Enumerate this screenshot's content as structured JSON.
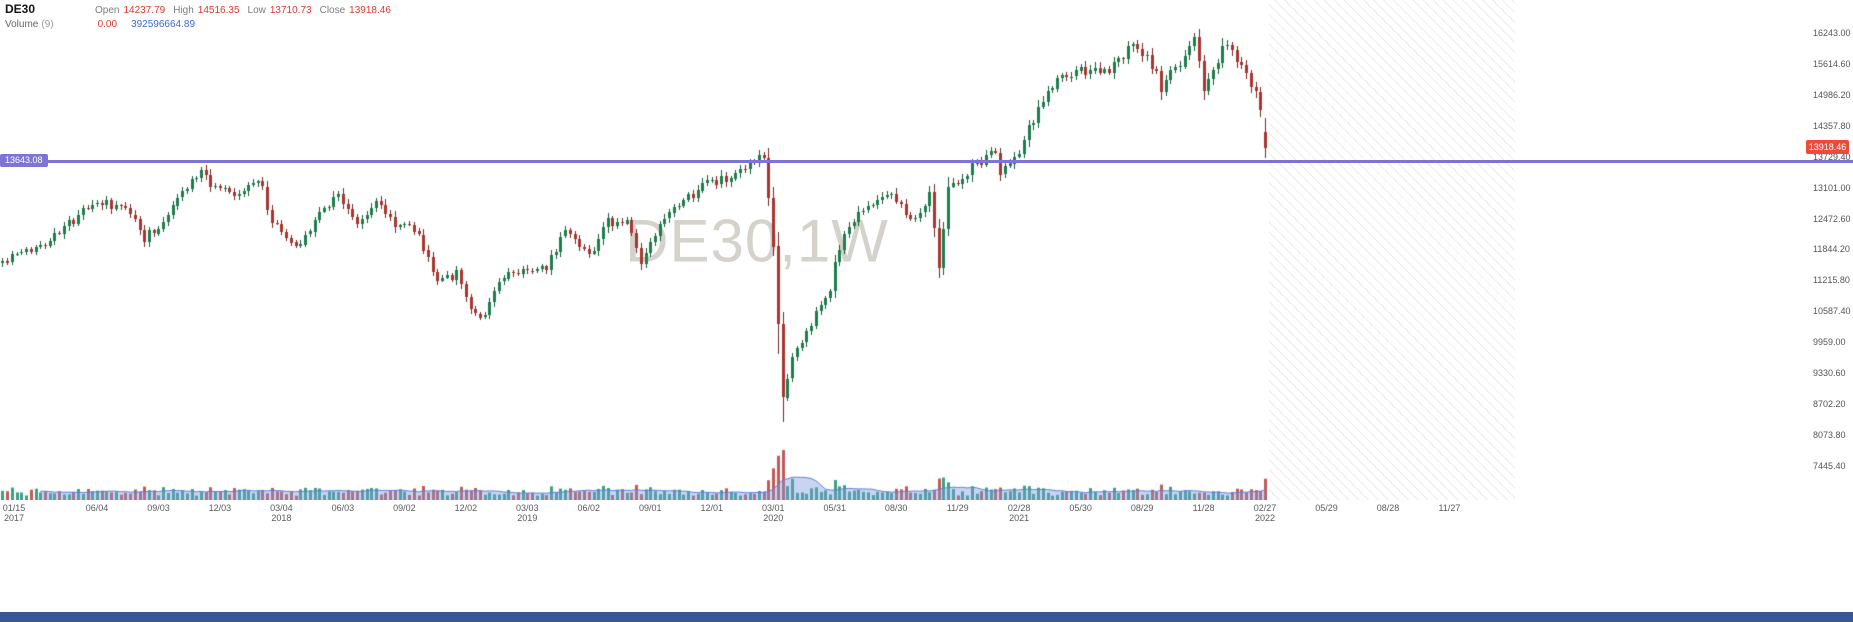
{
  "header": {
    "symbol": "DE30",
    "open_label": "Open",
    "open_value": "14237.79",
    "high_label": "High",
    "high_value": "14516.35",
    "low_label": "Low",
    "low_value": "13710.73",
    "close_label": "Close",
    "close_value": "13918.46",
    "indicator_name": "Volume",
    "indicator_period": "(9)",
    "indicator_value_1": "0.00",
    "indicator_value_2": "392596664.89"
  },
  "watermark": "DE30,1W",
  "hline_label": "13643.08",
  "current_price": "13918.46",
  "chart_data": {
    "type": "candlestick",
    "symbol": "DE30",
    "timeframe": "1W",
    "title_watermark": "DE30,1W",
    "last_candle": {
      "open": 14237.79,
      "high": 14516.35,
      "low": 13710.73,
      "close": 13918.46
    },
    "hline_price": 13643.08,
    "price_ticks": [
      "16243.00",
      "15614.60",
      "14986.20",
      "14357.80",
      "13729.40",
      "13101.00",
      "12472.60",
      "11844.20",
      "11215.80",
      "10587.40",
      "9959.00",
      "9330.60",
      "8702.20",
      "8073.80",
      "7445.40"
    ],
    "x_axis_labels": [
      {
        "text": "01/15",
        "week": 0,
        "year": "2017"
      },
      {
        "text": "06/04",
        "week": 20
      },
      {
        "text": "09/03",
        "week": 33
      },
      {
        "text": "12/03",
        "week": 46
      },
      {
        "text": "03/04",
        "week": 59,
        "year": "2018"
      },
      {
        "text": "06/03",
        "week": 72
      },
      {
        "text": "09/02",
        "week": 85
      },
      {
        "text": "12/02",
        "week": 98
      },
      {
        "text": "03/03",
        "week": 111,
        "year": "2019"
      },
      {
        "text": "06/02",
        "week": 124
      },
      {
        "text": "09/01",
        "week": 137
      },
      {
        "text": "12/01",
        "week": 150
      },
      {
        "text": "03/01",
        "week": 163,
        "year": "2020"
      },
      {
        "text": "05/31",
        "week": 176
      },
      {
        "text": "08/30",
        "week": 189
      },
      {
        "text": "11/29",
        "week": 202
      },
      {
        "text": "02/28",
        "week": 215,
        "year": "2021"
      },
      {
        "text": "05/30",
        "week": 228
      },
      {
        "text": "08/29",
        "week": 241
      },
      {
        "text": "11/28",
        "week": 254
      },
      {
        "text": "02/27",
        "week": 267,
        "year": "2022"
      },
      {
        "text": "05/29",
        "week": 280
      },
      {
        "text": "08/28",
        "week": 293
      },
      {
        "text": "11/27",
        "week": 306
      }
    ],
    "weeks_total": 268,
    "close_anchors_weekly": [
      [
        0,
        11600
      ],
      [
        6,
        11830
      ],
      [
        10,
        12060
      ],
      [
        15,
        12440
      ],
      [
        20,
        12820
      ],
      [
        23,
        12700
      ],
      [
        27,
        12620
      ],
      [
        30,
        12080
      ],
      [
        33,
        12310
      ],
      [
        37,
        12920
      ],
      [
        42,
        13440
      ],
      [
        45,
        13050
      ],
      [
        50,
        12910
      ],
      [
        54,
        13330
      ],
      [
        57,
        12420
      ],
      [
        62,
        11880
      ],
      [
        67,
        12580
      ],
      [
        71,
        13010
      ],
      [
        75,
        12310
      ],
      [
        79,
        12850
      ],
      [
        83,
        12360
      ],
      [
        87,
        12290
      ],
      [
        92,
        11250
      ],
      [
        96,
        11330
      ],
      [
        100,
        10480
      ],
      [
        102,
        10560
      ],
      [
        106,
        11290
      ],
      [
        111,
        11480
      ],
      [
        115,
        11420
      ],
      [
        119,
        12330
      ],
      [
        124,
        11740
      ],
      [
        128,
        12390
      ],
      [
        132,
        12420
      ],
      [
        135,
        11560
      ],
      [
        140,
        12440
      ],
      [
        145,
        12890
      ],
      [
        149,
        13240
      ],
      [
        154,
        13250
      ],
      [
        158,
        13520
      ],
      [
        161,
        13740
      ],
      [
        163,
        11890
      ],
      [
        164,
        10330
      ],
      [
        165,
        8850
      ],
      [
        167,
        9630
      ],
      [
        171,
        10340
      ],
      [
        175,
        11060
      ],
      [
        176,
        11590
      ],
      [
        179,
        12330
      ],
      [
        184,
        12840
      ],
      [
        188,
        13030
      ],
      [
        192,
        12470
      ],
      [
        196,
        12910
      ],
      [
        198,
        11560
      ],
      [
        200,
        13080
      ],
      [
        204,
        13410
      ],
      [
        206,
        13590
      ],
      [
        210,
        13870
      ],
      [
        211,
        13430
      ],
      [
        215,
        13790
      ],
      [
        219,
        14750
      ],
      [
        223,
        15280
      ],
      [
        227,
        15440
      ],
      [
        231,
        15450
      ],
      [
        235,
        15540
      ],
      [
        239,
        15980
      ],
      [
        243,
        15610
      ],
      [
        245,
        15150
      ],
      [
        249,
        15640
      ],
      [
        252,
        16160
      ],
      [
        254,
        15100
      ],
      [
        258,
        15890
      ],
      [
        260,
        15950
      ],
      [
        263,
        15320
      ],
      [
        265,
        15100
      ],
      [
        266,
        14570
      ],
      [
        267,
        13918.46
      ]
    ],
    "volume_ma_period": 9,
    "volume_ma_value": 392596664.89,
    "colors": {
      "body_up": "#1d7d4c",
      "body_down": "#a8352f",
      "wick_up": "#145c38",
      "wick_down": "#7c2521",
      "vol_up": "#3da183",
      "vol_down": "#c25b55",
      "vol_ma_line": "#5f7fd6",
      "vol_ma_fill": "rgba(125,155,225,0.42)",
      "hline": "#7e74d8",
      "price_badge": "#ee4a38",
      "footer_bar": "#3a5795"
    }
  }
}
